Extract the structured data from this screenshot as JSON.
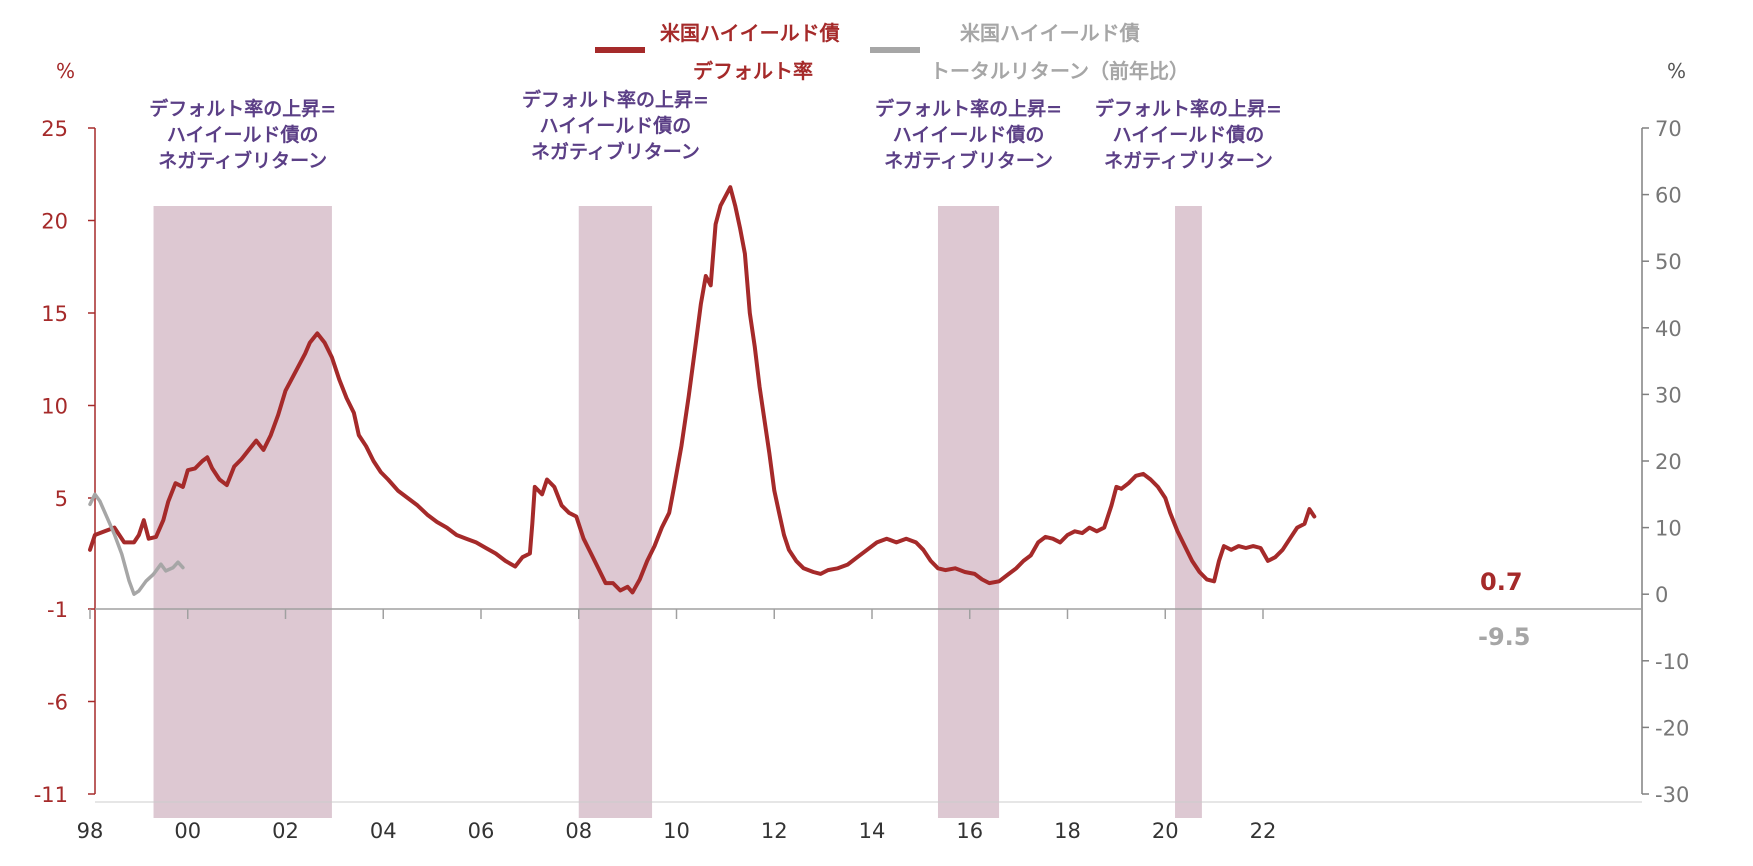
{
  "chart_data": {
    "type": "line",
    "legend": [
      {
        "line1": "米国ハイイールド債",
        "line2": "デフォルト率",
        "color": "#a52a2a"
      },
      {
        "line1": "米国ハイイールド債",
        "line2": "トータルリターン（前年比）",
        "color": "#a6a6a6"
      }
    ],
    "y_left": {
      "unit": "%",
      "ticks": [
        25,
        20,
        15,
        10,
        5,
        -1,
        -6,
        -11
      ],
      "range": [
        -11,
        25
      ],
      "color": "#a52a2a"
    },
    "y_right": {
      "unit": "%",
      "ticks": [
        70,
        60,
        50,
        40,
        30,
        20,
        10,
        0,
        -10,
        -20,
        -30
      ],
      "range": [
        -30,
        70
      ],
      "color": "#808080"
    },
    "x_ticks": [
      "98",
      "00",
      "02",
      "04",
      "06",
      "08",
      "10",
      "12",
      "14",
      "16",
      "18",
      "20",
      "22"
    ],
    "x_tick_years": [
      1998,
      2000,
      2002,
      2004,
      2006,
      2008,
      2010,
      2012,
      2014,
      2016,
      2018,
      2020,
      2022
    ],
    "x_range": [
      1998.0,
      2022.75
    ],
    "shaded_periods": [
      {
        "start": 1999.3,
        "end": 2002.95,
        "label": [
          "デフォルト率の上昇=",
          "ハイイールド債の",
          "ネガティブリターン"
        ]
      },
      {
        "start": 2008.0,
        "end": 2009.5,
        "label": [
          "デフォルト率の上昇=",
          "ハイイールド債の",
          "ネガティブリターン"
        ]
      },
      {
        "start": 2015.35,
        "end": 2016.6,
        "label": [
          "デフォルト率の上昇=",
          "ハイイールド債の",
          "ネガティブリターン"
        ]
      },
      {
        "start": 2020.2,
        "end": 2020.75,
        "label": [
          "デフォルト率の上昇=",
          "ハイイールド債の",
          "ネガティブリターン"
        ]
      }
    ],
    "series": [
      {
        "name": "米国ハイイールド債 デフォルト率",
        "axis": "left",
        "color": "#a52a2a",
        "points": [
          [
            1998.0,
            2.2
          ],
          [
            1998.1,
            3.0
          ],
          [
            1998.3,
            3.2
          ],
          [
            1998.5,
            3.4
          ],
          [
            1998.7,
            2.6
          ],
          [
            1998.9,
            2.6
          ],
          [
            1999.0,
            3.0
          ],
          [
            1999.1,
            3.8
          ],
          [
            1999.2,
            2.8
          ],
          [
            1999.35,
            2.9
          ],
          [
            1999.5,
            3.8
          ],
          [
            1999.6,
            4.8
          ],
          [
            1999.75,
            5.8
          ],
          [
            1999.9,
            5.6
          ],
          [
            2000.0,
            6.5
          ],
          [
            2000.15,
            6.6
          ],
          [
            2000.3,
            7.0
          ],
          [
            2000.4,
            7.2
          ],
          [
            2000.5,
            6.6
          ],
          [
            2000.65,
            6.0
          ],
          [
            2000.8,
            5.7
          ],
          [
            2000.95,
            6.7
          ],
          [
            2001.1,
            7.1
          ],
          [
            2001.25,
            7.6
          ],
          [
            2001.4,
            8.1
          ],
          [
            2001.55,
            7.6
          ],
          [
            2001.7,
            8.4
          ],
          [
            2001.85,
            9.5
          ],
          [
            2002.0,
            10.8
          ],
          [
            2002.2,
            11.8
          ],
          [
            2002.4,
            12.8
          ],
          [
            2002.5,
            13.4
          ],
          [
            2002.65,
            13.9
          ],
          [
            2002.8,
            13.4
          ],
          [
            2002.95,
            12.6
          ],
          [
            2003.1,
            11.4
          ],
          [
            2003.25,
            10.4
          ],
          [
            2003.4,
            9.6
          ],
          [
            2003.5,
            8.4
          ],
          [
            2003.65,
            7.8
          ],
          [
            2003.8,
            7.0
          ],
          [
            2003.95,
            6.4
          ],
          [
            2004.1,
            6.0
          ],
          [
            2004.3,
            5.4
          ],
          [
            2004.5,
            5.0
          ],
          [
            2004.7,
            4.6
          ],
          [
            2004.9,
            4.1
          ],
          [
            2005.1,
            3.7
          ],
          [
            2005.3,
            3.4
          ],
          [
            2005.5,
            3.0
          ],
          [
            2005.7,
            2.8
          ],
          [
            2005.9,
            2.6
          ],
          [
            2006.1,
            2.3
          ],
          [
            2006.3,
            2.0
          ],
          [
            2006.5,
            1.6
          ],
          [
            2006.7,
            1.3
          ],
          [
            2006.85,
            1.8
          ],
          [
            2007.0,
            2.0
          ],
          [
            2007.05,
            3.6
          ],
          [
            2007.1,
            5.6
          ],
          [
            2007.25,
            5.2
          ],
          [
            2007.35,
            6.0
          ],
          [
            2007.5,
            5.6
          ],
          [
            2007.65,
            4.6
          ],
          [
            2007.8,
            4.2
          ],
          [
            2007.95,
            4.0
          ],
          [
            2008.1,
            2.8
          ],
          [
            2008.25,
            2.0
          ],
          [
            2008.4,
            1.2
          ],
          [
            2008.55,
            0.4
          ],
          [
            2008.7,
            0.4
          ],
          [
            2008.85,
            0.0
          ],
          [
            2009.0,
            0.2
          ],
          [
            2009.1,
            -0.1
          ],
          [
            2009.25,
            0.6
          ],
          [
            2009.4,
            1.6
          ],
          [
            2009.55,
            2.4
          ],
          [
            2009.7,
            3.4
          ],
          [
            2009.85,
            4.2
          ],
          [
            2009.95,
            5.6
          ],
          [
            2010.1,
            7.8
          ],
          [
            2010.25,
            10.5
          ],
          [
            2010.4,
            13.5
          ],
          [
            2010.5,
            15.5
          ],
          [
            2010.6,
            17.0
          ],
          [
            2010.7,
            16.5
          ],
          [
            2010.8,
            19.8
          ],
          [
            2010.9,
            20.8
          ],
          [
            2011.0,
            21.3
          ],
          [
            2011.1,
            21.8
          ],
          [
            2011.2,
            20.8
          ],
          [
            2011.3,
            19.6
          ],
          [
            2011.4,
            18.2
          ],
          [
            2011.5,
            15.0
          ],
          [
            2011.6,
            13.2
          ],
          [
            2011.7,
            11.0
          ],
          [
            2011.8,
            9.2
          ],
          [
            2011.9,
            7.4
          ],
          [
            2012.0,
            5.4
          ],
          [
            2012.1,
            4.2
          ],
          [
            2012.2,
            3.0
          ],
          [
            2012.3,
            2.2
          ],
          [
            2012.45,
            1.6
          ],
          [
            2012.6,
            1.2
          ],
          [
            2012.8,
            1.0
          ],
          [
            2012.95,
            0.9
          ],
          [
            2013.1,
            1.1
          ],
          [
            2013.3,
            1.2
          ],
          [
            2013.5,
            1.4
          ],
          [
            2013.7,
            1.8
          ],
          [
            2013.9,
            2.2
          ],
          [
            2014.1,
            2.6
          ],
          [
            2014.3,
            2.8
          ],
          [
            2014.5,
            2.6
          ],
          [
            2014.7,
            2.8
          ],
          [
            2014.9,
            2.6
          ],
          [
            2015.05,
            2.2
          ],
          [
            2015.2,
            1.6
          ],
          [
            2015.35,
            1.2
          ],
          [
            2015.5,
            1.1
          ],
          [
            2015.7,
            1.2
          ],
          [
            2015.9,
            1.0
          ],
          [
            2016.1,
            0.9
          ],
          [
            2016.25,
            0.6
          ],
          [
            2016.4,
            0.4
          ],
          [
            2016.6,
            0.5
          ],
          [
            2016.8,
            0.9
          ],
          [
            2016.95,
            1.2
          ],
          [
            2017.1,
            1.6
          ],
          [
            2017.25,
            1.9
          ],
          [
            2017.4,
            2.6
          ],
          [
            2017.55,
            2.9
          ],
          [
            2017.7,
            2.8
          ],
          [
            2017.85,
            2.6
          ],
          [
            2018.0,
            3.0
          ],
          [
            2018.15,
            3.2
          ],
          [
            2018.3,
            3.1
          ],
          [
            2018.45,
            3.4
          ],
          [
            2018.6,
            3.2
          ],
          [
            2018.75,
            3.4
          ],
          [
            2018.9,
            4.6
          ],
          [
            2019.0,
            5.6
          ],
          [
            2019.1,
            5.5
          ],
          [
            2019.25,
            5.8
          ],
          [
            2019.4,
            6.2
          ],
          [
            2019.55,
            6.3
          ],
          [
            2019.7,
            6.0
          ],
          [
            2019.85,
            5.6
          ],
          [
            2020.0,
            5.0
          ],
          [
            2020.1,
            4.2
          ],
          [
            2020.25,
            3.2
          ],
          [
            2020.4,
            2.4
          ],
          [
            2020.55,
            1.6
          ],
          [
            2020.7,
            1.0
          ],
          [
            2020.85,
            0.6
          ],
          [
            2021.0,
            0.5
          ],
          [
            2021.1,
            1.6
          ],
          [
            2021.2,
            2.4
          ],
          [
            2021.35,
            2.2
          ],
          [
            2021.5,
            2.4
          ],
          [
            2021.65,
            2.3
          ],
          [
            2021.8,
            2.4
          ],
          [
            2021.95,
            2.3
          ],
          [
            2022.1,
            1.6
          ],
          [
            2022.25,
            1.8
          ],
          [
            2022.4,
            2.2
          ],
          [
            2022.55,
            2.8
          ],
          [
            2022.7,
            3.4
          ],
          [
            2022.85,
            3.6
          ],
          [
            2022.95,
            4.4
          ],
          [
            2023.05,
            4.0
          ]
        ]
      },
      {
        "name": "米国ハイイールド債 トータルリターン（前年比）",
        "axis": "right",
        "color": "#a6a6a6",
        "points": [
          [
            1998.0,
            13.5
          ],
          [
            1998.1,
            15.0
          ],
          [
            1998.2,
            14.0
          ],
          [
            1998.35,
            11.5
          ],
          [
            1998.5,
            9.0
          ],
          [
            1998.65,
            6.0
          ],
          [
            1998.8,
            2.0
          ],
          [
            1998.9,
            0.0
          ],
          [
            1999.0,
            0.5
          ],
          [
            1999.15,
            2.0
          ],
          [
            1999.3,
            3.0
          ],
          [
            1999.45,
            4.5
          ],
          [
            1999.55,
            3.5
          ],
          [
            1999.7,
            4.0
          ],
          [
            1999.8,
            4.8
          ],
          [
            1999.9,
            4.0
          ]
        ]
      }
    ]
  }
}
